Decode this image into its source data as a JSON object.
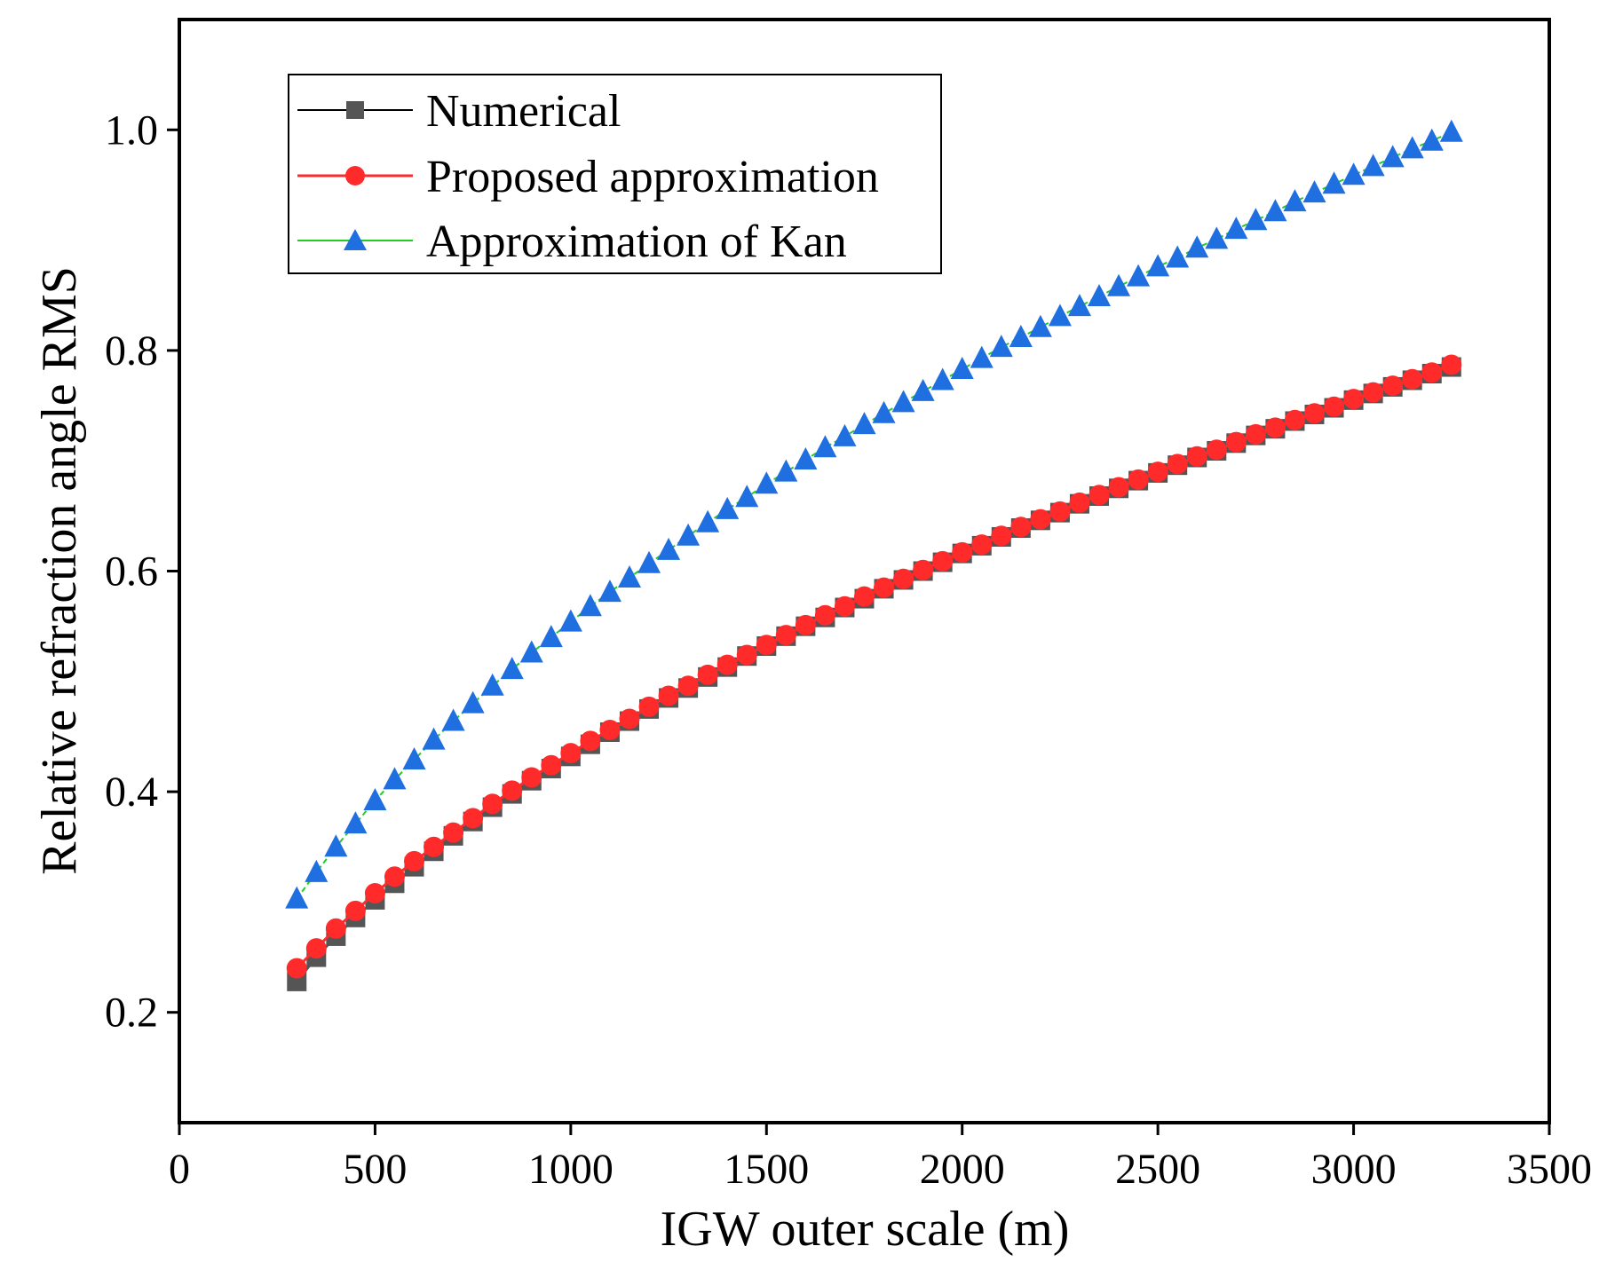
{
  "chart_data": {
    "type": "scatter",
    "title": "",
    "xlabel": "IGW outer scale (m)",
    "ylabel": "Relative refraction angle RMS",
    "xlim": [
      0,
      3500
    ],
    "ylim": [
      0.1,
      1.1
    ],
    "xticks": [
      0,
      500,
      1000,
      1500,
      2000,
      2500,
      3000,
      3500
    ],
    "yticks": [
      0.2,
      0.4,
      0.6,
      0.8,
      1.0
    ],
    "xtick_labels": [
      "0",
      "500",
      "1000",
      "1500",
      "2000",
      "2500",
      "3000",
      "3500"
    ],
    "ytick_labels": [
      "0.2",
      "0.4",
      "0.6",
      "0.8",
      "1.0"
    ],
    "legend_position": "top-left",
    "x": [
      300,
      350,
      400,
      450,
      500,
      550,
      600,
      650,
      700,
      750,
      800,
      850,
      900,
      950,
      1000,
      1050,
      1100,
      1150,
      1200,
      1250,
      1300,
      1350,
      1400,
      1450,
      1500,
      1550,
      1600,
      1650,
      1700,
      1750,
      1800,
      1850,
      1900,
      1950,
      2000,
      2050,
      2100,
      2150,
      2200,
      2250,
      2300,
      2350,
      2400,
      2450,
      2500,
      2550,
      2600,
      2650,
      2700,
      2750,
      2800,
      2850,
      2900,
      2950,
      3000,
      3050,
      3100,
      3150,
      3200,
      3250
    ],
    "series": [
      {
        "name": "Numerical",
        "color": "#555555",
        "marker": "square",
        "values": [
          0.228,
          0.25,
          0.269,
          0.286,
          0.302,
          0.317,
          0.332,
          0.346,
          0.36,
          0.373,
          0.386,
          0.398,
          0.41,
          0.421,
          0.432,
          0.443,
          0.454,
          0.464,
          0.475,
          0.485,
          0.494,
          0.504,
          0.513,
          0.523,
          0.532,
          0.541,
          0.55,
          0.558,
          0.567,
          0.575,
          0.584,
          0.592,
          0.6,
          0.608,
          0.616,
          0.623,
          0.631,
          0.639,
          0.646,
          0.653,
          0.661,
          0.668,
          0.675,
          0.682,
          0.689,
          0.696,
          0.703,
          0.709,
          0.716,
          0.723,
          0.729,
          0.736,
          0.742,
          0.748,
          0.755,
          0.761,
          0.767,
          0.773,
          0.779,
          0.785
        ]
      },
      {
        "name": "Proposed approximation",
        "color": "#ff2a2a",
        "marker": "circle",
        "values": [
          0.24,
          0.258,
          0.276,
          0.292,
          0.308,
          0.323,
          0.337,
          0.35,
          0.363,
          0.376,
          0.389,
          0.401,
          0.413,
          0.424,
          0.435,
          0.446,
          0.456,
          0.466,
          0.477,
          0.487,
          0.496,
          0.506,
          0.515,
          0.524,
          0.533,
          0.542,
          0.551,
          0.56,
          0.568,
          0.577,
          0.585,
          0.593,
          0.601,
          0.609,
          0.617,
          0.624,
          0.632,
          0.64,
          0.647,
          0.654,
          0.662,
          0.669,
          0.676,
          0.683,
          0.69,
          0.697,
          0.704,
          0.71,
          0.717,
          0.724,
          0.73,
          0.737,
          0.743,
          0.749,
          0.756,
          0.762,
          0.768,
          0.774,
          0.78,
          0.787
        ]
      },
      {
        "name": "Approximation of Kan",
        "color": "#1f6fe0",
        "line_color": "#22cc22",
        "marker": "triangle",
        "values": [
          0.303,
          0.327,
          0.35,
          0.371,
          0.392,
          0.411,
          0.429,
          0.447,
          0.464,
          0.48,
          0.496,
          0.511,
          0.526,
          0.54,
          0.554,
          0.568,
          0.581,
          0.594,
          0.607,
          0.619,
          0.632,
          0.644,
          0.656,
          0.667,
          0.679,
          0.69,
          0.701,
          0.712,
          0.722,
          0.733,
          0.743,
          0.753,
          0.763,
          0.773,
          0.783,
          0.793,
          0.803,
          0.812,
          0.821,
          0.831,
          0.84,
          0.849,
          0.858,
          0.867,
          0.876,
          0.884,
          0.893,
          0.901,
          0.91,
          0.918,
          0.926,
          0.935,
          0.943,
          0.951,
          0.959,
          0.967,
          0.975,
          0.983,
          0.99,
          0.998
        ]
      }
    ]
  }
}
